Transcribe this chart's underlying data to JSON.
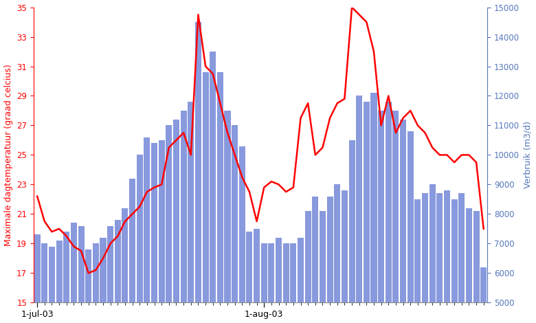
{
  "ylabel_left": "Maximale dagtemperatuur (graad celcius)",
  "ylabel_right": "Verbruik (m3/d)",
  "xlabel_ticks": [
    "1-jul-03",
    "1-aug-03"
  ],
  "bar_color": "#8899dd",
  "line_color": "#ff0000",
  "left_ylim": [
    15,
    35
  ],
  "right_ylim": [
    5000,
    15000
  ],
  "left_yticks": [
    15,
    17,
    19,
    21,
    23,
    25,
    27,
    29,
    31,
    33,
    35
  ],
  "right_yticks": [
    5000,
    6000,
    7000,
    8000,
    9000,
    10000,
    11000,
    12000,
    13000,
    14000,
    15000
  ],
  "n_days": 62,
  "bar_values": [
    7300,
    7000,
    6900,
    7100,
    7400,
    7700,
    7600,
    6800,
    7000,
    7200,
    7600,
    7800,
    8200,
    9200,
    10000,
    10600,
    10400,
    10500,
    11000,
    11200,
    11500,
    11800,
    14500,
    12800,
    13500,
    12800,
    11500,
    11000,
    10300,
    7400,
    7500,
    7000,
    7000,
    7200,
    7000,
    7000,
    7200,
    8100,
    8600,
    8100,
    8600,
    9000,
    8800,
    10500,
    12000,
    11800,
    12100,
    11500,
    11800,
    11500,
    11200,
    10800,
    8500,
    8700,
    9000,
    8700,
    8800,
    8500,
    8700,
    8200,
    8100,
    6200
  ],
  "temp_values": [
    22.2,
    20.5,
    19.8,
    20.0,
    19.5,
    18.8,
    18.5,
    17.0,
    17.2,
    18.0,
    19.0,
    19.5,
    20.5,
    21.0,
    21.5,
    22.5,
    22.8,
    23.0,
    25.5,
    26.0,
    26.5,
    25.0,
    34.5,
    31.0,
    30.5,
    28.5,
    26.5,
    25.0,
    23.5,
    22.5,
    20.5,
    22.8,
    23.2,
    23.0,
    22.5,
    22.8,
    27.5,
    28.5,
    25.0,
    25.5,
    27.5,
    28.5,
    28.8,
    35.0,
    34.5,
    34.0,
    32.0,
    27.0,
    29.0,
    26.5,
    27.5,
    28.0,
    27.0,
    26.5,
    25.5,
    25.0,
    25.0,
    24.5,
    25.0,
    25.0,
    24.5,
    20.0
  ],
  "left_label_color": "#ff0000",
  "right_label_color": "#5577bb",
  "right_tick_color": "#5577bb",
  "left_tick_color": "#ff0000",
  "bg_color": "#ffffff",
  "spine_bottom_color": "#888888",
  "figsize": [
    7.8,
    4.7
  ],
  "dpi": 100
}
